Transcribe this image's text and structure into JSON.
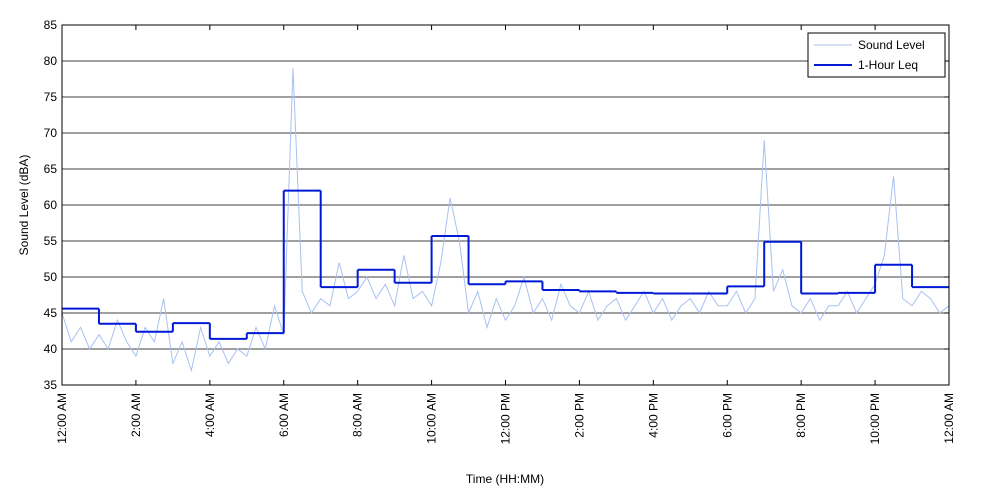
{
  "chart_data": {
    "type": "line",
    "y_label": "Sound Level (dBA)",
    "x_label": "Time (HH:MM)",
    "x": [
      0,
      0.25,
      0.5,
      0.75,
      1,
      1.25,
      1.5,
      1.75,
      2,
      2.25,
      2.5,
      2.75,
      3,
      3.25,
      3.5,
      3.75,
      4,
      4.25,
      4.5,
      4.75,
      5,
      5.25,
      5.5,
      5.75,
      6,
      6.25,
      6.5,
      6.75,
      7,
      7.25,
      7.5,
      7.75,
      8,
      8.25,
      8.5,
      8.75,
      9,
      9.25,
      9.5,
      9.75,
      10,
      10.25,
      10.5,
      10.75,
      11,
      11.25,
      11.5,
      11.75,
      12,
      12.25,
      12.5,
      12.75,
      13,
      13.25,
      13.5,
      13.75,
      14,
      14.25,
      14.5,
      14.75,
      15,
      15.25,
      15.5,
      15.75,
      16,
      16.25,
      16.5,
      16.75,
      17,
      17.25,
      17.5,
      17.75,
      18,
      18.25,
      18.5,
      18.75,
      19,
      19.25,
      19.5,
      19.75,
      20,
      20.25,
      20.5,
      20.75,
      21,
      21.25,
      21.5,
      21.75,
      22,
      22.25,
      22.5,
      22.75,
      23,
      23.25,
      23.5,
      23.75,
      24
    ],
    "series": [
      {
        "name": "Sound Level",
        "color": "#a9c1f2",
        "style": "line",
        "values": [
          45,
          41,
          43,
          40,
          42,
          40,
          44,
          41,
          39,
          43,
          41,
          47,
          38,
          41,
          37,
          43,
          39,
          41,
          38,
          40,
          39,
          43,
          40,
          46,
          42,
          79,
          48,
          45,
          47,
          46,
          52,
          47,
          48,
          50,
          47,
          49,
          46,
          53,
          47,
          48,
          46,
          52,
          61,
          55,
          45,
          48,
          43,
          47,
          44,
          46,
          50,
          45,
          47,
          44,
          49,
          46,
          45,
          48,
          44,
          46,
          47,
          44,
          46,
          48,
          45,
          47,
          44,
          46,
          47,
          45,
          48,
          46,
          46,
          48,
          45,
          47,
          69,
          48,
          51,
          46,
          45,
          47,
          44,
          46,
          46,
          48,
          45,
          47,
          49,
          53,
          64,
          47,
          46,
          48,
          47,
          45,
          46
        ]
      },
      {
        "name": "1-Hour Leq",
        "color": "#0019d4",
        "style": "step",
        "x": [
          0,
          1,
          2,
          3,
          4,
          5,
          6,
          7,
          8,
          9,
          10,
          11,
          12,
          13,
          14,
          15,
          16,
          17,
          18,
          19,
          20,
          21,
          22,
          23
        ],
        "values": [
          45.6,
          43.5,
          42.4,
          43.6,
          41.4,
          42.2,
          62.0,
          48.6,
          51.0,
          49.2,
          55.7,
          49.0,
          49.4,
          48.2,
          48.0,
          47.8,
          47.7,
          47.7,
          48.7,
          54.9,
          47.7,
          47.8,
          51.7,
          48.6
        ]
      }
    ],
    "xlim": [
      0,
      24
    ],
    "xticks": [
      {
        "value": 0,
        "label": "12:00 AM"
      },
      {
        "value": 2,
        "label": "2:00 AM"
      },
      {
        "value": 4,
        "label": "4:00 AM"
      },
      {
        "value": 6,
        "label": "6:00 AM"
      },
      {
        "value": 8,
        "label": "8:00 AM"
      },
      {
        "value": 10,
        "label": "10:00 AM"
      },
      {
        "value": 12,
        "label": "12:00 PM"
      },
      {
        "value": 14,
        "label": "2:00 PM"
      },
      {
        "value": 16,
        "label": "4:00 PM"
      },
      {
        "value": 18,
        "label": "6:00 PM"
      },
      {
        "value": 20,
        "label": "8:00 PM"
      },
      {
        "value": 22,
        "label": "10:00 PM"
      },
      {
        "value": 24,
        "label": "12:00 AM"
      }
    ],
    "ylim": [
      35,
      85
    ],
    "yticks": [
      35,
      40,
      45,
      50,
      55,
      60,
      65,
      70,
      75,
      80,
      85
    ],
    "grid": true,
    "legend": "top-right"
  }
}
